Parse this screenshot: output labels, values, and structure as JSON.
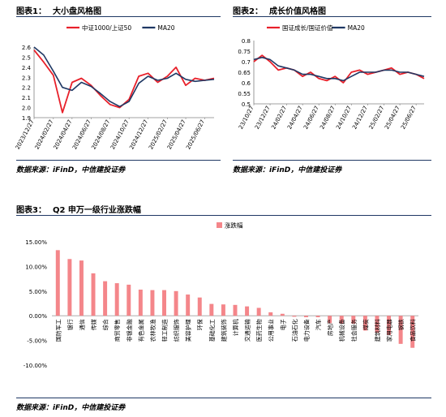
{
  "figures": [
    {
      "label": "图表1：",
      "title": "大小盘风格图",
      "source": "数据来源：iFinD，中信建投证券",
      "chart_data": {
        "type": "line",
        "legend_position": "top",
        "grid": false,
        "ylim": [
          1.9,
          2.6
        ],
        "yticks": [
          "2.6",
          "2.5",
          "2.4",
          "2.3",
          "2.2",
          "2.1",
          "2.0",
          "1.9"
        ],
        "ytick_values": [
          2.6,
          2.5,
          2.4,
          2.3,
          2.2,
          2.1,
          2.0,
          1.9
        ],
        "x_dates": [
          "2023-12-27",
          "2024-01-27",
          "2024-02-27",
          "2024-03-27",
          "2024-04-27",
          "2024-05-27",
          "2024-06-27",
          "2024-07-27",
          "2024-08-27",
          "2024-09-27",
          "2024-10-27",
          "2024-11-27",
          "2024-12-27",
          "2025-01-27",
          "2025-02-27",
          "2025-03-27",
          "2025-04-27",
          "2025-05-27",
          "2025-06-27",
          "2025-07-27"
        ],
        "x_ticks": [
          "2023/12/27",
          "2024/02/27",
          "2024/04/27",
          "2024/06/27",
          "2024/08/27",
          "2024/10/27",
          "2024/12/27",
          "2025/02/27",
          "2025/04/27",
          "2025/06/27"
        ],
        "series": [
          {
            "name": "中证1000/上证50",
            "color": "#e8202a",
            "values": [
              2.57,
              2.45,
              2.32,
              1.95,
              2.25,
              2.29,
              2.22,
              2.12,
              2.03,
              2.0,
              2.08,
              2.31,
              2.34,
              2.25,
              2.31,
              2.4,
              2.22,
              2.29,
              2.27,
              2.29
            ]
          },
          {
            "name": "MA20",
            "color": "#1f3864",
            "values": [
              2.6,
              2.52,
              2.36,
              2.2,
              2.17,
              2.25,
              2.21,
              2.14,
              2.06,
              2.01,
              2.06,
              2.24,
              2.31,
              2.27,
              2.29,
              2.34,
              2.28,
              2.26,
              2.27,
              2.28
            ]
          }
        ]
      }
    },
    {
      "label": "图表2：",
      "title": "成长价值风格图",
      "source": "数据来源：iFinD，中信建投证券",
      "chart_data": {
        "type": "line",
        "legend_position": "top",
        "grid": false,
        "ylim": [
          0.5,
          0.8
        ],
        "yticks": [
          "0.8",
          "0.75",
          "0.7",
          "0.65",
          "0.6",
          "0.55",
          "0.5"
        ],
        "ytick_values": [
          0.8,
          0.75,
          0.7,
          0.65,
          0.6,
          0.55,
          0.5
        ],
        "x_dates": [
          "2023-10-27",
          "2023-11-27",
          "2023-12-27",
          "2024-01-27",
          "2024-02-27",
          "2024-03-27",
          "2024-04-27",
          "2024-05-27",
          "2024-06-27",
          "2024-07-27",
          "2024-08-27",
          "2024-09-27",
          "2024-10-27",
          "2024-11-27",
          "2024-12-27",
          "2025-01-27",
          "2025-02-27",
          "2025-03-27",
          "2025-04-27",
          "2025-05-27",
          "2025-06-27",
          "2025-07-27"
        ],
        "x_ticks": [
          "23/10/27",
          "23/12/27",
          "24/02/27",
          "24/04/27",
          "24/06/27",
          "24/08/27",
          "24/10/27",
          "24/12/27",
          "25/02/27",
          "25/04/27",
          "25/06/27"
        ],
        "series": [
          {
            "name": "国证成长/国证价值",
            "color": "#e8202a",
            "values": [
              0.7,
              0.73,
              0.7,
              0.66,
              0.67,
              0.66,
              0.63,
              0.65,
              0.62,
              0.61,
              0.63,
              0.6,
              0.65,
              0.66,
              0.64,
              0.65,
              0.66,
              0.67,
              0.64,
              0.65,
              0.64,
              0.62
            ]
          },
          {
            "name": "MA20",
            "color": "#1f3864",
            "values": [
              0.71,
              0.72,
              0.71,
              0.68,
              0.67,
              0.66,
              0.64,
              0.64,
              0.63,
              0.62,
              0.62,
              0.61,
              0.63,
              0.65,
              0.65,
              0.65,
              0.66,
              0.66,
              0.65,
              0.65,
              0.64,
              0.63
            ]
          }
        ]
      }
    },
    {
      "label": "图表3：",
      "title": "Q2 申万一级行业涨跌幅",
      "source": "数据来源：iFinD，中信建投证券",
      "chart_data": {
        "type": "bar",
        "legend_position": "top",
        "grid": false,
        "ylim": [
          -10,
          15
        ],
        "yticks": [
          "15.00%",
          "10.00%",
          "5.00%",
          "0.00%",
          "-5.00%",
          "-10.00%"
        ],
        "ytick_values": [
          15,
          10,
          5,
          0,
          -5,
          -10
        ],
        "categories": [
          "国防军工",
          "银行",
          "通信",
          "传媒",
          "综合",
          "商贸零售",
          "非银金融",
          "有色金属",
          "农林牧渔",
          "轻工制造",
          "纺织服饰",
          "美容护理",
          "环保",
          "基础化工",
          "建筑装饰",
          "计算机",
          "交通运输",
          "医药生物",
          "公用事业",
          "电子",
          "石油石化",
          "电力设备",
          "汽车",
          "房地产",
          "机械设备",
          "社会服务",
          "煤炭",
          "建筑材料",
          "家用电器",
          "钢铁",
          "食品饮料"
        ],
        "series": [
          {
            "name": "涨跌幅",
            "color": "#f4868a",
            "values": [
              13.3,
              11.5,
              11.2,
              8.6,
              7.0,
              6.6,
              6.3,
              5.3,
              5.2,
              5.2,
              5.0,
              4.3,
              3.7,
              2.4,
              2.3,
              2.2,
              1.9,
              1.6,
              0.7,
              0.4,
              -0.2,
              -0.3,
              -0.3,
              -1.5,
              -1.6,
              -1.6,
              -3.0,
              -3.4,
              -3.9,
              -5.7,
              -6.5
            ]
          }
        ]
      }
    }
  ]
}
